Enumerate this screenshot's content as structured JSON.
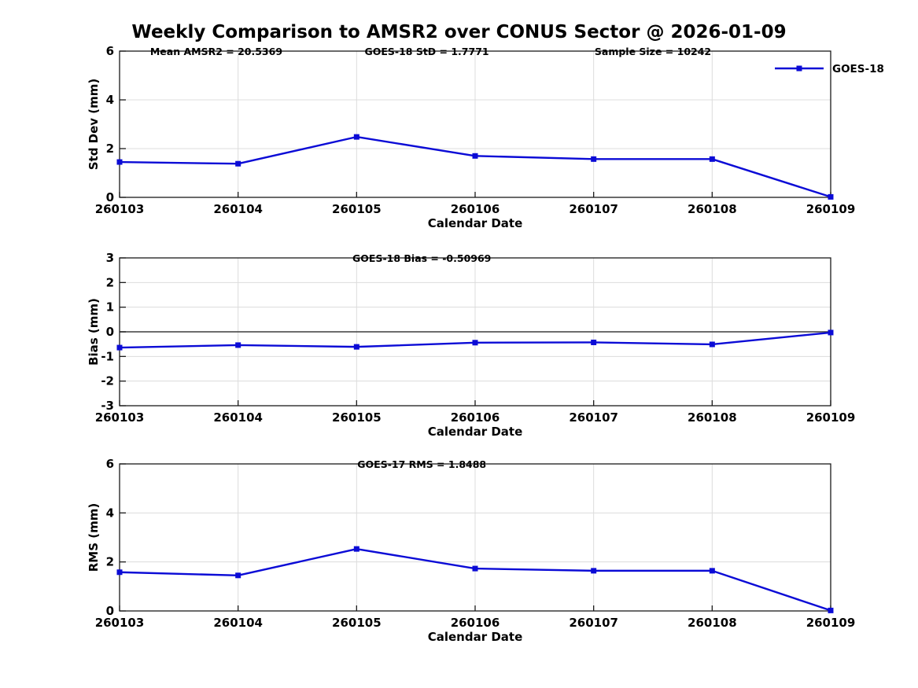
{
  "title": "Weekly Comparison to AMSR2 over CONUS Sector @ 2026-01-09",
  "colors": {
    "line": "#0b0bd6",
    "marker": "#0b0bd6",
    "grid": "#dcdcdc",
    "axis": "#1a1a1a",
    "zero_line": "#3d3d3d",
    "text": "#000000"
  },
  "chart_data": [
    {
      "type": "line",
      "id": "std-dev",
      "ylabel": "Std Dev (mm)",
      "xlabel": "Calendar Date",
      "ylim": [
        0,
        6
      ],
      "yticks": [
        0,
        2,
        4,
        6
      ],
      "grid": true,
      "legend": {
        "label": "GOES-18"
      },
      "annotations": [
        {
          "text": "Mean AMSR2 = 20.5369",
          "fx": 0.136
        },
        {
          "text": "GOES-18 StD = 1.7771",
          "fx": 0.432
        },
        {
          "text": "Sample Size = 10242",
          "fx": 0.75
        }
      ],
      "categories": [
        "260103",
        "260104",
        "260105",
        "260106",
        "260107",
        "260108",
        "260109"
      ],
      "values": [
        1.45,
        1.38,
        2.48,
        1.7,
        1.57,
        1.57,
        0.02
      ]
    },
    {
      "type": "line",
      "id": "bias",
      "ylabel": "Bias (mm)",
      "xlabel": "Calendar Date",
      "ylim": [
        -3,
        3
      ],
      "yticks": [
        -3,
        -2,
        -1,
        0,
        1,
        2,
        3
      ],
      "grid": true,
      "zero_line": true,
      "annotations": [
        {
          "text": "GOES-18 Bias  = -0.50969",
          "fx": 0.425
        }
      ],
      "categories": [
        "260103",
        "260104",
        "260105",
        "260106",
        "260107",
        "260108",
        "260109"
      ],
      "values": [
        -0.64,
        -0.54,
        -0.61,
        -0.44,
        -0.43,
        -0.51,
        -0.03
      ]
    },
    {
      "type": "line",
      "id": "rms",
      "ylabel": "RMS (mm)",
      "xlabel": "Calendar Date",
      "ylim": [
        0,
        6
      ],
      "yticks": [
        0,
        2,
        4,
        6
      ],
      "grid": true,
      "annotations": [
        {
          "text": "GOES-17 RMS = 1.8488",
          "fx": 0.425
        }
      ],
      "categories": [
        "260103",
        "260104",
        "260105",
        "260106",
        "260107",
        "260108",
        "260109"
      ],
      "values": [
        1.58,
        1.45,
        2.53,
        1.73,
        1.64,
        1.64,
        0.02
      ]
    }
  ]
}
